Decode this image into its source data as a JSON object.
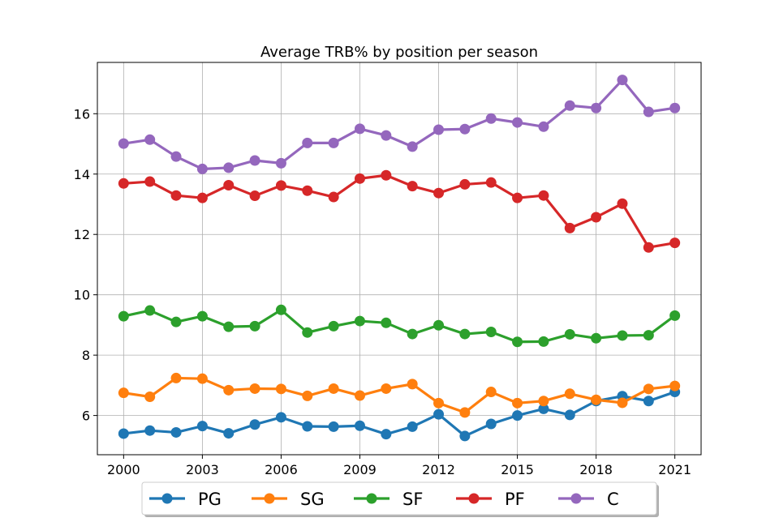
{
  "chart_data": {
    "type": "line",
    "title": "Average TRB% by position per season",
    "xlabel": "",
    "ylabel": "",
    "x": [
      2000,
      2001,
      2002,
      2003,
      2004,
      2005,
      2006,
      2007,
      2008,
      2009,
      2010,
      2011,
      2012,
      2013,
      2014,
      2015,
      2016,
      2017,
      2018,
      2019,
      2020,
      2021
    ],
    "xlim": [
      1999,
      2022
    ],
    "ylim": [
      4.7,
      17.7
    ],
    "xticks": [
      2000,
      2003,
      2006,
      2009,
      2012,
      2015,
      2018,
      2021
    ],
    "yticks": [
      6,
      8,
      10,
      12,
      14,
      16
    ],
    "grid": true,
    "legend_position": "bottom-center",
    "series": [
      {
        "name": "PG",
        "color": "#1f77b4",
        "values": [
          5.4,
          5.5,
          5.44,
          5.65,
          5.41,
          5.7,
          5.94,
          5.64,
          5.63,
          5.66,
          5.38,
          5.63,
          6.04,
          5.32,
          5.72,
          6.0,
          6.22,
          6.02,
          6.48,
          6.64,
          6.48,
          6.78
        ]
      },
      {
        "name": "SG",
        "color": "#ff7f0e",
        "values": [
          6.75,
          6.62,
          7.24,
          7.22,
          6.84,
          6.89,
          6.88,
          6.65,
          6.89,
          6.66,
          6.89,
          7.04,
          6.41,
          6.1,
          6.78,
          6.41,
          6.48,
          6.72,
          6.52,
          6.42,
          6.88,
          6.98
        ]
      },
      {
        "name": "SF",
        "color": "#2ca02c",
        "values": [
          9.29,
          9.48,
          9.1,
          9.29,
          8.94,
          8.96,
          9.5,
          8.75,
          8.96,
          9.13,
          9.07,
          8.7,
          8.99,
          8.7,
          8.77,
          8.44,
          8.45,
          8.69,
          8.56,
          8.65,
          8.66,
          9.31
        ]
      },
      {
        "name": "PF",
        "color": "#d62728",
        "values": [
          13.69,
          13.75,
          13.29,
          13.21,
          13.63,
          13.28,
          13.62,
          13.45,
          13.24,
          13.85,
          13.96,
          13.6,
          13.37,
          13.66,
          13.72,
          13.21,
          13.29,
          12.21,
          12.57,
          13.02,
          11.57,
          11.72
        ]
      },
      {
        "name": "C",
        "color": "#9467bd",
        "values": [
          15.01,
          15.14,
          14.58,
          14.17,
          14.21,
          14.45,
          14.36,
          15.03,
          15.03,
          15.5,
          15.28,
          14.91,
          15.47,
          15.49,
          15.84,
          15.71,
          15.57,
          16.27,
          16.19,
          17.12,
          16.06,
          16.19
        ]
      }
    ]
  }
}
